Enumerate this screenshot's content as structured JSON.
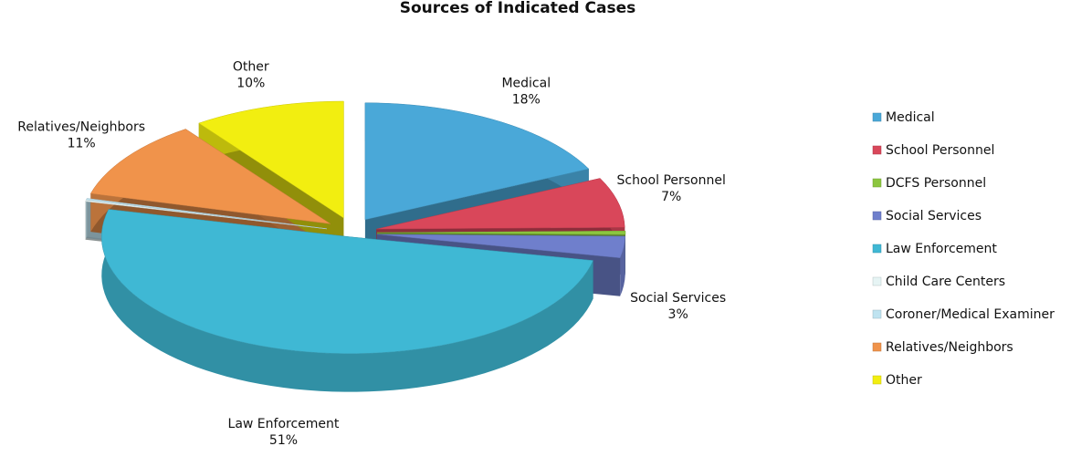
{
  "chart_data": {
    "type": "pie3d",
    "title": "Sources of Indicated Cases",
    "categories": [
      "Medical",
      "School Personnel",
      "DCFS Personnel",
      "Social Services",
      "Law Enforcement",
      "Child Care Centers",
      "Coroner/Medical Examiner",
      "Relatives/Neighbors",
      "Other"
    ],
    "values": [
      18,
      7,
      0.5,
      3,
      51,
      0.2,
      0.2,
      11,
      10
    ],
    "value_labels": [
      "18%",
      "7%",
      null,
      "3%",
      "51%",
      null,
      null,
      "11%",
      "10%"
    ],
    "colors": [
      "#4aa8d8",
      "#d9475a",
      "#8cc63f",
      "#6f7fcc",
      "#3fb8d4",
      "#e6f4f4",
      "#bfe3f0",
      "#f0934b",
      "#f2ee10"
    ],
    "legend": "right"
  }
}
